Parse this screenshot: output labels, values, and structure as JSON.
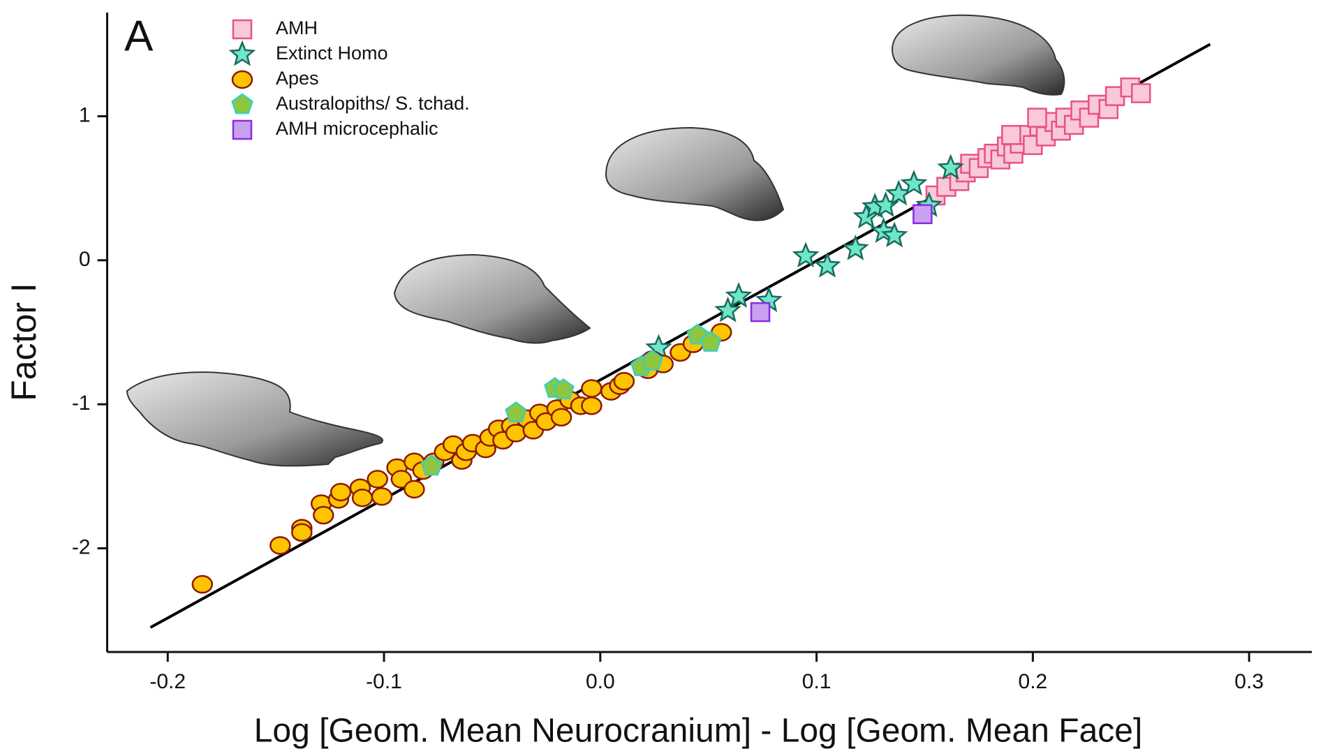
{
  "chart_data": {
    "type": "scatter",
    "panel_label": "A",
    "x_label": "Log [Geom. Mean Neurocranium] - Log [Geom. Mean Face]",
    "y_label": "Factor I",
    "xlim": [
      -0.228,
      0.329
    ],
    "ylim": [
      -2.72,
      1.72
    ],
    "xticks": [
      -0.2,
      -0.1,
      {
        "value": 0,
        "label": "0.0"
      },
      0.1,
      0.2,
      0.3
    ],
    "yticks": [
      1,
      0,
      -1,
      -2
    ],
    "grid": false,
    "legend": "upper left",
    "fit_line": {
      "color": "#000000",
      "x": [
        -0.208,
        0.282
      ],
      "y": [
        -2.55,
        1.5
      ]
    },
    "series": [
      {
        "name": "AMH",
        "marker": "square",
        "color": "#f9c9d8",
        "edge": "#e8508c",
        "x": [
          0.155,
          0.16,
          0.166,
          0.169,
          0.171,
          0.175,
          0.179,
          0.182,
          0.185,
          0.188,
          0.191,
          0.194,
          0.197,
          0.2,
          0.203,
          0.206,
          0.21,
          0.213,
          0.215,
          0.219,
          0.222,
          0.226,
          0.23,
          0.235,
          0.238,
          0.245,
          0.25,
          0.19,
          0.202
        ],
        "values": [
          0.45,
          0.51,
          0.55,
          0.61,
          0.67,
          0.64,
          0.71,
          0.74,
          0.7,
          0.79,
          0.74,
          0.81,
          0.87,
          0.8,
          0.93,
          0.86,
          0.96,
          0.9,
          0.99,
          0.94,
          1.04,
          0.99,
          1.08,
          1.05,
          1.14,
          1.2,
          1.16,
          0.87,
          0.99
        ]
      },
      {
        "name": "Extinct Homo",
        "marker": "star",
        "color": "#6ee6c8",
        "edge": "#1a6a5e",
        "x": [
          0.027,
          0.059,
          0.064,
          0.078,
          0.095,
          0.105,
          0.118,
          0.123,
          0.127,
          0.131,
          0.132,
          0.136,
          0.138,
          0.145,
          0.152,
          0.162
        ],
        "values": [
          -0.61,
          -0.35,
          -0.25,
          -0.28,
          0.03,
          -0.04,
          0.08,
          0.3,
          0.37,
          0.2,
          0.38,
          0.17,
          0.46,
          0.53,
          0.38,
          0.64
        ]
      },
      {
        "name": "Apes",
        "marker": "circle",
        "color": "#ffc400",
        "edge": "#8b1a00",
        "x": [
          -0.184,
          -0.148,
          -0.138,
          -0.138,
          -0.129,
          -0.128,
          -0.121,
          -0.12,
          -0.111,
          -0.11,
          -0.101,
          -0.103,
          -0.094,
          -0.092,
          -0.086,
          -0.086,
          -0.082,
          -0.077,
          -0.072,
          -0.068,
          -0.064,
          -0.062,
          -0.059,
          -0.053,
          -0.051,
          -0.047,
          -0.045,
          -0.041,
          -0.039,
          -0.034,
          -0.031,
          -0.028,
          -0.025,
          -0.02,
          -0.018,
          -0.014,
          -0.009,
          -0.004,
          -0.004,
          0.005,
          0.009,
          0.011,
          0.022,
          0.024,
          0.029,
          0.037,
          0.043,
          0.056
        ],
        "values": [
          -2.25,
          -1.98,
          -1.86,
          -1.89,
          -1.69,
          -1.77,
          -1.66,
          -1.61,
          -1.58,
          -1.65,
          -1.64,
          -1.52,
          -1.44,
          -1.52,
          -1.59,
          -1.4,
          -1.46,
          -1.4,
          -1.33,
          -1.28,
          -1.39,
          -1.33,
          -1.27,
          -1.31,
          -1.23,
          -1.17,
          -1.25,
          -1.15,
          -1.2,
          -1.1,
          -1.18,
          -1.06,
          -1.12,
          -1.03,
          -1.09,
          -0.97,
          -1.01,
          -1.01,
          -0.89,
          -0.91,
          -0.87,
          -0.84,
          -0.76,
          -0.69,
          -0.72,
          -0.64,
          -0.58,
          -0.5
        ]
      },
      {
        "name": "Australopiths/ S. tchad.",
        "marker": "pentagon",
        "color": "#8dc63f",
        "edge": "#3ad0c0",
        "x": [
          -0.078,
          -0.039,
          -0.021,
          -0.017,
          0.019,
          0.024,
          0.045,
          0.051
        ],
        "values": [
          -1.43,
          -1.06,
          -0.89,
          -0.9,
          -0.74,
          -0.7,
          -0.52,
          -0.57
        ]
      },
      {
        "name": "AMH microcephalic",
        "marker": "square",
        "color": "#c9a0f0",
        "edge": "#8a2be2",
        "x": [
          0.074,
          0.149
        ],
        "values": [
          -0.36,
          0.32
        ]
      }
    ]
  }
}
